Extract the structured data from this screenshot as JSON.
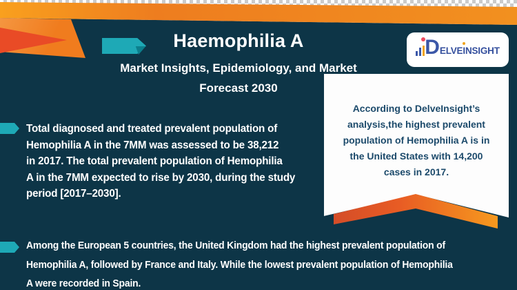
{
  "header": {
    "title": "Haemophilia A",
    "subtitle_lines": [
      "Market Insights, Epidemiology, and Market",
      "Forecast 2030"
    ]
  },
  "logo": {
    "d": "D",
    "part1": "ELVE",
    "dotted_i": "I",
    "part2": "NSIGHT"
  },
  "ribbon": {
    "lines": [
      "According to DelveInsight’s",
      "analysis,the highest prevalent",
      "population of Hemophilia A is in",
      "the United States with 14,200",
      "cases in 2017."
    ]
  },
  "bullets": [
    {
      "lines": [
        "Total diagnosed and treated prevalent population of",
        "Hemophilia A in the 7MM was assessed to be 38,212",
        "in 2017. The total prevalent population of Hemophilia",
        "A in the 7MM expected to rise by 2030, during the study",
        "period [2017–2030]."
      ]
    },
    {
      "lines": [
        "Among the European 5 countries, the United Kingdom had the highest prevalent population of",
        "Hemophilia A, followed by France and Italy. While the lowest prevalent population of Hemophilia",
        "A were recorded in Spain."
      ]
    }
  ],
  "colors": {
    "teal-bg": "#0d3547",
    "accent-teal": "#1ea9b6",
    "red-orange": "#e94b26",
    "orange": "#f2871f",
    "chevron-left": "#d44d28",
    "chevron-right": "#f6991e",
    "ribbon-text": "#1c4a6b",
    "logo-blue": "#3b57a8"
  }
}
